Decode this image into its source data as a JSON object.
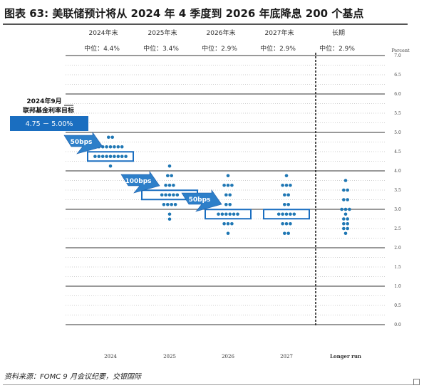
{
  "figure_title": "图表 63: 美联储预计将从 2024 年 4 季度到 2026 年底降息 200 个基点",
  "source_note": "资料来源：FOMC 9 月会议纪要，交银国际",
  "colors": {
    "dot": "#1f77b4",
    "box_fill": "#1a6ec0",
    "box_outline": "#1a6ec0",
    "arrow": "#2d7fc9",
    "grid": "#cfcfcf",
    "hline": "#333333"
  },
  "chart_data": {
    "type": "scatter",
    "categories": [
      "2024",
      "2025",
      "2026",
      "2027",
      "Longer run"
    ],
    "column_headers": [
      "2024年末",
      "2025年末",
      "2026年末",
      "2027年末",
      "长期"
    ],
    "medians_text": [
      "中位：4.4%",
      "中位：3.4%",
      "中位：2.9%",
      "中位：2.9%",
      "中位：2.9%"
    ],
    "medians": [
      4.375,
      3.375,
      2.875,
      2.875,
      2.875
    ],
    "ylabel": "Percent",
    "ylim": [
      0,
      7
    ],
    "yticks": [
      "7.0",
      "6.5",
      "6.0",
      "5.5",
      "5.0",
      "4.5",
      "4.0",
      "3.5",
      "3.0",
      "2.5",
      "2.0",
      "1.5",
      "1.0",
      "0.5",
      "0.0"
    ],
    "grid": true,
    "dots": [
      [
        {
          "y": 4.875,
          "n": 2
        },
        {
          "y": 4.625,
          "n": 7
        },
        {
          "y": 4.375,
          "n": 9
        },
        {
          "y": 4.125,
          "n": 1
        }
      ],
      [
        {
          "y": 4.125,
          "n": 1
        },
        {
          "y": 3.875,
          "n": 2
        },
        {
          "y": 3.625,
          "n": 3
        },
        {
          "y": 3.375,
          "n": 5
        },
        {
          "y": 3.125,
          "n": 4
        },
        {
          "y": 2.875,
          "n": 1
        },
        {
          "y": 2.875,
          "n": 1
        }
      ],
      [
        {
          "y": 3.875,
          "n": 1
        },
        {
          "y": 3.625,
          "n": 3
        },
        {
          "y": 3.375,
          "n": 2
        },
        {
          "y": 3.125,
          "n": 2
        },
        {
          "y": 2.875,
          "n": 6
        },
        {
          "y": 2.625,
          "n": 3
        },
        {
          "y": 2.375,
          "n": 1
        }
      ],
      [
        {
          "y": 3.875,
          "n": 1
        },
        {
          "y": 3.625,
          "n": 3
        },
        {
          "y": 3.375,
          "n": 2
        },
        {
          "y": 3.125,
          "n": 2
        },
        {
          "y": 2.875,
          "n": 5
        },
        {
          "y": 2.625,
          "n": 3
        },
        {
          "y": 2.375,
          "n": 2
        }
      ],
      [
        {
          "y": 3.75,
          "n": 1
        },
        {
          "y": 3.5,
          "n": 2
        },
        {
          "y": 3.25,
          "n": 2
        },
        {
          "y": 3.0,
          "n": 3
        },
        {
          "y": 2.875,
          "n": 1
        },
        {
          "y": 2.75,
          "n": 2
        },
        {
          "y": 2.625,
          "n": 2
        },
        {
          "y": 2.5,
          "n": 2
        },
        {
          "y": 2.375,
          "n": 1
        }
      ]
    ],
    "current_rate": {
      "label_line1": "2024年9月",
      "label_line2": "联邦基金利率目标",
      "range_text": "4.75 － 5.00%"
    },
    "cuts": [
      {
        "label": "50bps",
        "from_category": 0
      },
      {
        "label": "100bps",
        "from_category": 1
      },
      {
        "label": "50bps",
        "from_category": 2
      }
    ]
  }
}
